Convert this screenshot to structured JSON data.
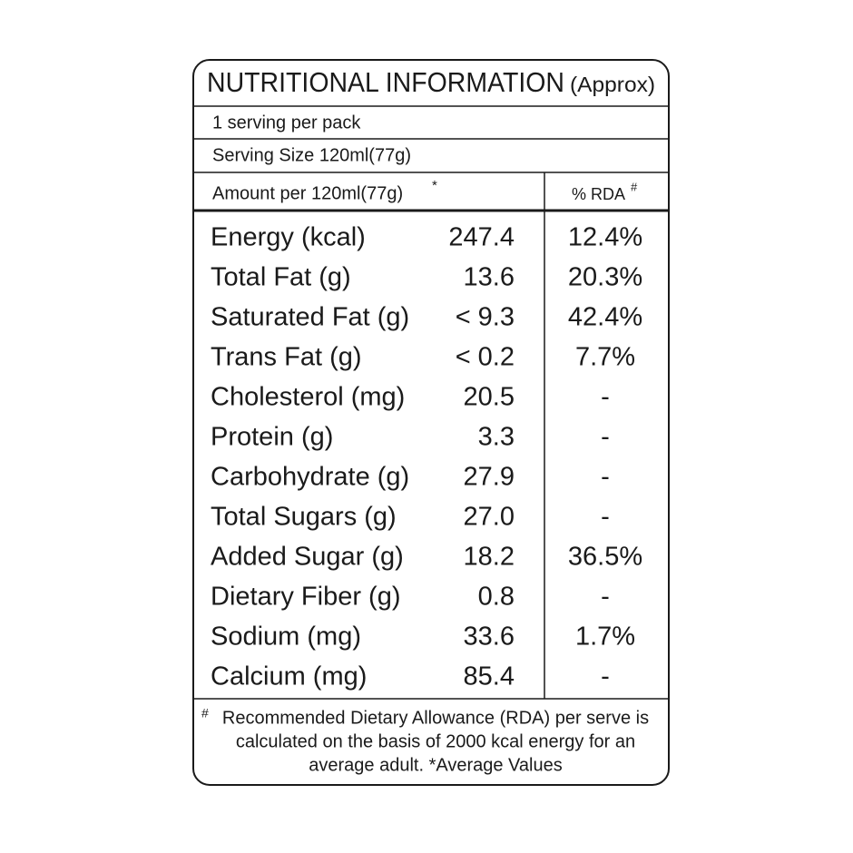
{
  "header": {
    "title": "NUTRITIONAL INFORMATION",
    "title_note": "(Approx)"
  },
  "servings": "1 serving per pack",
  "serving_size": "Serving Size 120ml(77g)",
  "columns": {
    "amount": "Amount per 120ml(77g)",
    "amount_mark": "*",
    "rda": "% RDA",
    "rda_mark": "#"
  },
  "table": {
    "rows": [
      [
        "Energy (kcal)",
        "247.4",
        "12.4%"
      ],
      [
        "Total Fat (g)",
        "13.6",
        "20.3%"
      ],
      [
        "Saturated Fat (g)",
        "< 9.3",
        "42.4%"
      ],
      [
        "Trans Fat (g)",
        "< 0.2",
        "7.7%"
      ],
      [
        "Cholesterol (mg)",
        "20.5",
        "-"
      ],
      [
        "Protein (g)",
        "3.3",
        "-"
      ],
      [
        "Carbohydrate (g)",
        "27.9",
        "-"
      ],
      [
        "Total Sugars (g)",
        "27.0",
        "-"
      ],
      [
        "Added Sugar (g)",
        "18.2",
        "36.5%"
      ],
      [
        "Dietary Fiber (g)",
        "0.8",
        "-"
      ],
      [
        "Sodium (mg)",
        "33.6",
        "1.7%"
      ],
      [
        "Calcium (mg)",
        "85.4",
        "-"
      ]
    ]
  },
  "footnote": {
    "mark": "#",
    "lines": [
      "Recommended Dietary Allowance (RDA) per serve is",
      "calculated on the basis of 2000 kcal energy for an",
      "average adult. *Average Values"
    ]
  }
}
